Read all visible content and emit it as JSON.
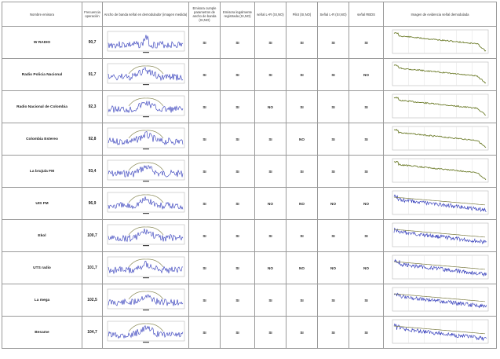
{
  "columns": [
    "Nombre emisora",
    "Frecuencia operación",
    "Ancho de banda señal en demodulador (imagen medida)",
    "Emisora cumple parametros de ancho de banda (SI,NO)",
    "Emisora legalmente registrada (SI,NO)",
    "señal L+R (SI,NO)",
    "Pilot (SI,NO)",
    "Señal L-R (SI,NO)",
    "señal RBDS",
    "Imagen de evidencia señal demodulada"
  ],
  "rows": [
    {
      "name": "W RADIO",
      "freq": "90,7",
      "cumple": "SI",
      "legal": "SI",
      "lr_sum": "SI",
      "pilot": "SI",
      "lr_diff": "SI",
      "rbds": "SI",
      "bw": "narrow",
      "demod": "olive"
    },
    {
      "name": "Radio Policia Nacional",
      "freq": "91,7",
      "cumple": "SI",
      "legal": "SI",
      "lr_sum": "SI",
      "pilot": "SI",
      "lr_diff": "SI",
      "rbds": "NO",
      "bw": "wide",
      "demod": "olive"
    },
    {
      "name": "Radio Nacional de Colombia",
      "freq": "92,3",
      "cumple": "SI",
      "legal": "SI",
      "lr_sum": "NO",
      "pilot": "SI",
      "lr_diff": "SI",
      "rbds": "SI",
      "bw": "wide",
      "demod": "olive"
    },
    {
      "name": "Colombia Estereo",
      "freq": "92,8",
      "cumple": "SI",
      "legal": "SI",
      "lr_sum": "SI",
      "pilot": "NO",
      "lr_diff": "SI",
      "rbds": "SI",
      "bw": "wide",
      "demod": "olive"
    },
    {
      "name": "La brujula FM",
      "freq": "93,4",
      "cumple": "SI",
      "legal": "SI",
      "lr_sum": "SI",
      "pilot": "SI",
      "lr_diff": "SI",
      "rbds": "SI",
      "bw": "wide",
      "demod": "olive"
    },
    {
      "name": "UIS FM",
      "freq": "96,9",
      "cumple": "SI",
      "legal": "SI",
      "lr_sum": "NO",
      "pilot": "NO",
      "lr_diff": "NO",
      "rbds": "NO",
      "bw": "wide",
      "demod": "blue"
    },
    {
      "name": "Ekol",
      "freq": "100,7",
      "cumple": "SI",
      "legal": "SI",
      "lr_sum": "SI",
      "pilot": "SI",
      "lr_diff": "SI",
      "rbds": "SI",
      "bw": "wide",
      "demod": "blue"
    },
    {
      "name": "UTS radio",
      "freq": "101,7",
      "cumple": "SI",
      "legal": "SI",
      "lr_sum": "NO",
      "pilot": "NO",
      "lr_diff": "NO",
      "rbds": "NO",
      "bw": "wide",
      "demod": "blue"
    },
    {
      "name": "La mega",
      "freq": "102,5",
      "cumple": "SI",
      "legal": "SI",
      "lr_sum": "SI",
      "pilot": "SI",
      "lr_diff": "SI",
      "rbds": "SI",
      "bw": "wide",
      "demod": "blue"
    },
    {
      "name": "Besame",
      "freq": "104,7",
      "cumple": "SI",
      "legal": "SI",
      "lr_sum": "SI",
      "pilot": "SI",
      "lr_diff": "SI",
      "rbds": "SI",
      "bw": "wide",
      "demod": "blue"
    }
  ],
  "colors": {
    "spectrum": "#2b35b8",
    "envelope": "#7a7a40",
    "olive": "#6e7d2c",
    "blue": "#2b35b8",
    "grid": "#b8b8b8"
  }
}
